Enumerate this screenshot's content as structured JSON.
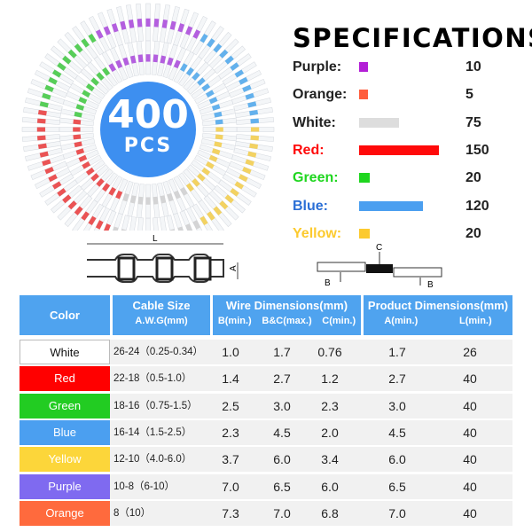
{
  "badge": {
    "count": "400",
    "unit": "PCS"
  },
  "specs": {
    "title": "SPECIFICATIONS",
    "items": [
      {
        "label": "Purple:",
        "color": "#b31fd6",
        "text_color": "#222222",
        "qty": "10",
        "bar_fraction": 0.067
      },
      {
        "label": "Orange:",
        "color": "#ff5e3d",
        "text_color": "#222222",
        "qty": "5",
        "bar_fraction": 0.033
      },
      {
        "label": "White:",
        "color": "#dddddd",
        "text_color": "#222222",
        "qty": "75",
        "bar_fraction": 0.5
      },
      {
        "label": "Red:",
        "color": "#ff0a0a",
        "text_color": "#ff0a0a",
        "qty": "150",
        "bar_fraction": 1.0
      },
      {
        "label": "Green:",
        "color": "#1fd61f",
        "text_color": "#1fd61f",
        "qty": "20",
        "bar_fraction": 0.133
      },
      {
        "label": "Blue:",
        "color": "#4b9ff0",
        "text_color": "#2b6fd6",
        "qty": "120",
        "bar_fraction": 0.8
      },
      {
        "label": "Yellow:",
        "color": "#fcca2e",
        "text_color": "#fcca2e",
        "qty": "20",
        "bar_fraction": 0.133
      }
    ]
  },
  "diagram": {
    "L": "L",
    "A": "A",
    "B": "B",
    "C": "C"
  },
  "table": {
    "headers": {
      "color": "Color",
      "cable": "Cable Size",
      "cable_sub": "A.W.G(mm)",
      "wire": "Wire Dimensions(mm)",
      "wire_b": "B(min.)",
      "wire_bc": "B&C(max.)",
      "wire_c": "C(min.)",
      "product": "Product Dimensions(mm)",
      "prod_a": "A(min.)",
      "prod_l": "L(min.)"
    },
    "rows": [
      {
        "color": "White",
        "swatch": "#ffffff",
        "text": "#111111",
        "cable": "26-24（0.25-0.34）",
        "b": "1.0",
        "bc": "1.7",
        "c": "0.76",
        "a": "1.7",
        "l": "26"
      },
      {
        "color": "Red",
        "swatch": "#ff0000",
        "text": "#ffffff",
        "cable": "22-18（0.5-1.0）",
        "b": "1.4",
        "bc": "2.7",
        "c": "1.2",
        "a": "2.7",
        "l": "40"
      },
      {
        "color": "Green",
        "swatch": "#22cc22",
        "text": "#ffffff",
        "cable": "18-16（0.75-1.5）",
        "b": "2.5",
        "bc": "3.0",
        "c": "2.3",
        "a": "3.0",
        "l": "40"
      },
      {
        "color": "Blue",
        "swatch": "#4b9ff0",
        "text": "#ffffff",
        "cable": "16-14（1.5-2.5）",
        "b": "2.3",
        "bc": "4.5",
        "c": "2.0",
        "a": "4.5",
        "l": "40"
      },
      {
        "color": "Yellow",
        "swatch": "#fcd63a",
        "text": "#ffffff",
        "cable": "12-10（4.0-6.0）",
        "b": "3.7",
        "bc": "6.0",
        "c": "3.4",
        "a": "6.0",
        "l": "40"
      },
      {
        "color": "Purple",
        "swatch": "#7f6af0",
        "text": "#ffffff",
        "cable": "10-8（6-10）",
        "b": "7.0",
        "bc": "6.5",
        "c": "6.0",
        "a": "6.5",
        "l": "40"
      },
      {
        "color": "Orange",
        "swatch": "#ff6a3d",
        "text": "#ffffff",
        "cable": "8（10）",
        "b": "7.3",
        "bc": "7.0",
        "c": "6.8",
        "a": "7.0",
        "l": "40"
      }
    ]
  }
}
